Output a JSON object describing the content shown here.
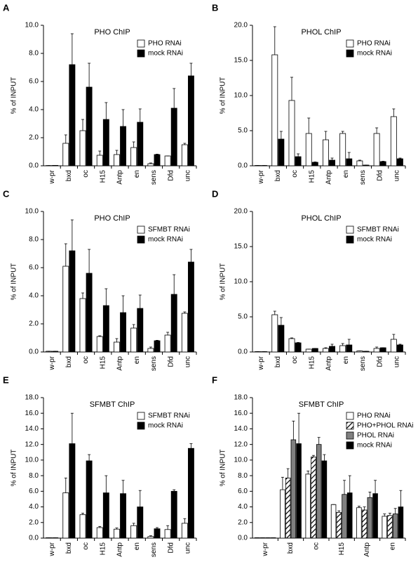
{
  "chart_data": [
    {
      "type": "bar",
      "label": "A",
      "title": "PHO ChIP",
      "ylabel": "% of INPUT",
      "legend": "upper right",
      "categories": [
        "w-pr",
        "bxd",
        "oc",
        "H15",
        "Antp",
        "en",
        "sens",
        "Dfd",
        "unc"
      ],
      "series": [
        {
          "name": "PHO RNAi",
          "color": "#ffffff",
          "values": [
            0.02,
            1.6,
            2.5,
            0.75,
            0.8,
            1.3,
            0.15,
            0.7,
            1.5
          ],
          "errors": [
            0,
            0.6,
            0.8,
            0.3,
            0.3,
            0.4,
            0.05,
            0,
            0.1
          ]
        },
        {
          "name": "mock RNAi",
          "color": "#000000",
          "values": [
            0.03,
            7.2,
            5.6,
            3.3,
            2.8,
            3.1,
            0.8,
            4.1,
            6.4
          ],
          "errors": [
            0,
            2.2,
            1.7,
            1.2,
            1.2,
            0.95,
            0.03,
            1.4,
            0.9
          ]
        }
      ],
      "ylim": [
        0,
        10
      ],
      "yticks": [
        {
          "value": 0,
          "label": "0.0"
        },
        {
          "value": 2,
          "label": "2.0"
        },
        {
          "value": 4,
          "label": "4.0"
        },
        {
          "value": 6,
          "label": "6.0"
        },
        {
          "value": 8,
          "label": "8.0"
        },
        {
          "value": 10,
          "label": "10.0"
        }
      ]
    },
    {
      "type": "bar",
      "label": "B",
      "title": "PHOL ChIP",
      "ylabel": "% of INPUT",
      "legend": "upper right",
      "categories": [
        "w-pr",
        "bxd",
        "oc",
        "H15",
        "Antp",
        "en",
        "sens",
        "Dfd",
        "unc"
      ],
      "series": [
        {
          "name": "PHO RNAi",
          "color": "#ffffff",
          "values": [
            0.05,
            15.8,
            9.3,
            4.6,
            3.7,
            4.6,
            0.7,
            4.6,
            7.0
          ],
          "errors": [
            0,
            4,
            3.3,
            2.2,
            1.2,
            0.3,
            0.1,
            0.8,
            1.1
          ]
        },
        {
          "name": "mock RNAi",
          "color": "#000000",
          "values": [
            0.05,
            3.8,
            1.3,
            0.5,
            0.8,
            1.0,
            0.1,
            0.6,
            1.0
          ],
          "errors": [
            0,
            1.1,
            0.4,
            0.05,
            0.3,
            0.9,
            0,
            0.05,
            0.1
          ]
        }
      ],
      "ylim": [
        0,
        20
      ],
      "yticks": [
        {
          "value": 0,
          "label": "0.0"
        },
        {
          "value": 5,
          "label": "5.0"
        },
        {
          "value": 10,
          "label": "10.0"
        },
        {
          "value": 15,
          "label": "15.0"
        },
        {
          "value": 20,
          "label": "20.0"
        }
      ]
    },
    {
      "type": "bar",
      "label": "C",
      "title": "PHO ChIP",
      "ylabel": "% of INPUT",
      "legend": "upper right",
      "categories": [
        "w-pr",
        "bxd",
        "oc",
        "H15",
        "Antp",
        "en",
        "sens",
        "Dfd",
        "unc"
      ],
      "series": [
        {
          "name": "SFMBT RNAi",
          "color": "#ffffff",
          "values": [
            0.05,
            6.1,
            3.8,
            1.1,
            0.7,
            1.7,
            0.25,
            1.2,
            2.75
          ],
          "errors": [
            0,
            1.6,
            0.4,
            0.05,
            0.25,
            0.25,
            0.1,
            0.2,
            0.1
          ]
        },
        {
          "name": "mock RNAi",
          "color": "#000000",
          "values": [
            0.05,
            7.2,
            5.6,
            3.3,
            2.8,
            3.1,
            0.8,
            4.1,
            6.4
          ],
          "errors": [
            0,
            2.2,
            1.7,
            1.2,
            1.2,
            0.95,
            0.03,
            1.4,
            0.9
          ]
        }
      ],
      "ylim": [
        0,
        10
      ],
      "yticks": [
        {
          "value": 0,
          "label": "0.0"
        },
        {
          "value": 2,
          "label": "2.0"
        },
        {
          "value": 4,
          "label": "4.0"
        },
        {
          "value": 6,
          "label": "6.0"
        },
        {
          "value": 8,
          "label": "8.0"
        },
        {
          "value": 10,
          "label": "10.0"
        }
      ]
    },
    {
      "type": "bar",
      "label": "D",
      "title": "PHOL ChIP",
      "ylabel": "% of INPUT",
      "legend": "upper right",
      "categories": [
        "w-pr",
        "bxd",
        "oc",
        "H15",
        "Antp",
        "en",
        "sens",
        "Dfd",
        "unc"
      ],
      "series": [
        {
          "name": "SFMBT RNAi",
          "color": "#ffffff",
          "values": [
            0.05,
            5.3,
            1.9,
            0.4,
            0.5,
            0.9,
            0.15,
            0.5,
            1.8
          ],
          "errors": [
            0,
            0.5,
            0.1,
            0,
            0.1,
            0.3,
            0,
            0.2,
            0.7
          ]
        },
        {
          "name": "mock RNAi",
          "color": "#000000",
          "values": [
            0.05,
            3.8,
            1.3,
            0.5,
            0.8,
            1.0,
            0.1,
            0.6,
            1.0
          ],
          "errors": [
            0,
            1.1,
            0.05,
            0,
            0.3,
            0.8,
            0,
            0,
            0.1
          ]
        }
      ],
      "ylim": [
        0,
        20
      ],
      "yticks": [
        {
          "value": 0,
          "label": "0.0"
        },
        {
          "value": 5,
          "label": "5.0"
        },
        {
          "value": 10,
          "label": "10.0"
        },
        {
          "value": 15,
          "label": "15.0"
        },
        {
          "value": 20,
          "label": "20.0"
        }
      ]
    },
    {
      "type": "bar",
      "label": "E",
      "title": "SFMBT ChIP",
      "ylabel": "% of INPUT",
      "legend": "upper right",
      "categories": [
        "w-pr",
        "bxd",
        "oc",
        "H15",
        "Antp",
        "en",
        "sens",
        "Dfd",
        "unc"
      ],
      "series": [
        {
          "name": "SFMBT RNAi",
          "color": "#ffffff",
          "values": [
            0.05,
            5.8,
            3.0,
            1.35,
            1.15,
            1.6,
            0.2,
            1.1,
            1.9
          ],
          "errors": [
            0,
            1.9,
            0.2,
            0.15,
            0.15,
            0.3,
            0.1,
            0.5,
            0.6
          ]
        },
        {
          "name": "mock RNAi",
          "color": "#000000",
          "values": [
            0.05,
            12.1,
            9.9,
            5.8,
            5.7,
            4.0,
            1.2,
            6.0,
            11.5
          ],
          "errors": [
            0,
            3.9,
            0.8,
            2.2,
            1.7,
            2.1,
            0.15,
            0.2,
            0.6
          ]
        }
      ],
      "ylim": [
        0,
        18
      ],
      "yticks": [
        {
          "value": 0,
          "label": "0.0"
        },
        {
          "value": 2,
          "label": "2.0"
        },
        {
          "value": 4,
          "label": "4.0"
        },
        {
          "value": 6,
          "label": "6.0"
        },
        {
          "value": 8,
          "label": "8.0"
        },
        {
          "value": 10,
          "label": "10.0"
        },
        {
          "value": 12,
          "label": "12.0"
        },
        {
          "value": 14,
          "label": "14.0"
        },
        {
          "value": 16,
          "label": "16.0"
        },
        {
          "value": 18,
          "label": "18.0"
        }
      ]
    },
    {
      "type": "bar",
      "label": "F",
      "title": "SFMBT ChIP",
      "ylabel": "% of INPUT",
      "legend": "upper right",
      "categories": [
        "w-pr",
        "bxd",
        "oc",
        "H15",
        "Antp",
        "en"
      ],
      "series": [
        {
          "name": "PHO RNAi",
          "color": "#ffffff",
          "values": [
            0.05,
            6.2,
            8.2,
            4.3,
            3.9,
            2.8
          ],
          "errors": [
            0,
            1.6,
            0.4,
            0,
            0.2,
            0.3
          ]
        },
        {
          "name": "PHO+PHOL RNAi",
          "color": "#ffffff",
          "hatch": true,
          "values": [
            0.05,
            7.7,
            10.4,
            3.3,
            3.6,
            2.9
          ],
          "errors": [
            0,
            1.2,
            0.2,
            0.2,
            0.4,
            0.3
          ]
        },
        {
          "name": "PHOL RNAi",
          "color": "#808080",
          "values": [
            0.05,
            12.6,
            12.0,
            5.6,
            5.2,
            3.1
          ],
          "errors": [
            0,
            2.4,
            0.9,
            1.8,
            0.7,
            0.7
          ]
        },
        {
          "name": "mock RNAi",
          "color": "#000000",
          "values": [
            0.05,
            12.1,
            9.9,
            5.8,
            5.7,
            4.0
          ],
          "errors": [
            0,
            3.9,
            0.8,
            2.2,
            1.7,
            2.1
          ]
        }
      ],
      "ylim": [
        0,
        18
      ],
      "yticks": [
        {
          "value": 0,
          "label": "0.0"
        },
        {
          "value": 2,
          "label": "2.0"
        },
        {
          "value": 4,
          "label": "4.0"
        },
        {
          "value": 6,
          "label": "6.0"
        },
        {
          "value": 8,
          "label": "8.0"
        },
        {
          "value": 10,
          "label": "10.0"
        },
        {
          "value": 12,
          "label": "12.0"
        },
        {
          "value": 14,
          "label": "14.0"
        },
        {
          "value": 16,
          "label": "16.0"
        },
        {
          "value": 18,
          "label": "18.0"
        }
      ]
    }
  ]
}
